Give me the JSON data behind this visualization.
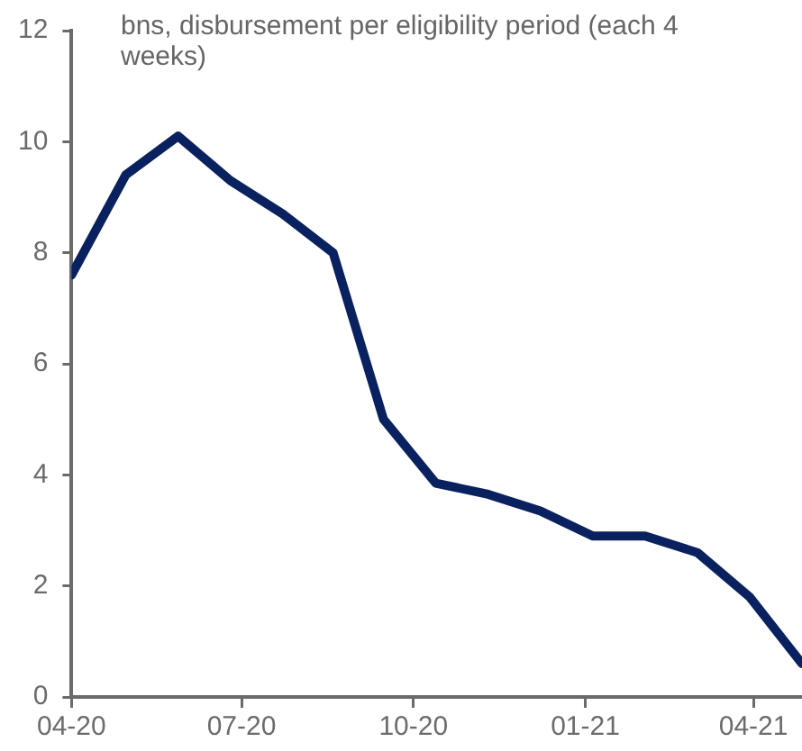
{
  "chart_data": {
    "type": "line",
    "ylabel": "bns, disbursement per eligibility period (each 4 weeks)",
    "x": [
      "2020-04-01",
      "2020-04-30",
      "2020-05-28",
      "2020-06-25",
      "2020-07-23",
      "2020-08-19",
      "2020-09-15",
      "2020-10-13",
      "2020-11-10",
      "2020-12-08",
      "2021-01-05",
      "2021-02-02",
      "2021-03-02",
      "2021-03-30",
      "2021-04-27"
    ],
    "series": [
      {
        "color": "#0a2160",
        "values": [
          7.6,
          9.4,
          10.1,
          9.3,
          8.7,
          8.0,
          5.0,
          3.85,
          3.65,
          3.35,
          2.9,
          2.9,
          2.6,
          1.8,
          0.6
        ]
      }
    ],
    "xlim": [
      "2020-04-01",
      "2021-04-27"
    ],
    "xticks": [
      {
        "value": "2020-04-01",
        "label": "04-20"
      },
      {
        "value": "2020-07-01",
        "label": "07-20"
      },
      {
        "value": "2020-10-01",
        "label": "10-20"
      },
      {
        "value": "2021-01-01",
        "label": "01-21"
      },
      {
        "value": "2021-04-01",
        "label": "04-21"
      }
    ],
    "ylim": [
      0,
      12
    ],
    "yticks": [
      0,
      2,
      4,
      6,
      8,
      10,
      12
    ],
    "grid": false,
    "legend": false,
    "marker": "none",
    "line_style": "solid"
  }
}
